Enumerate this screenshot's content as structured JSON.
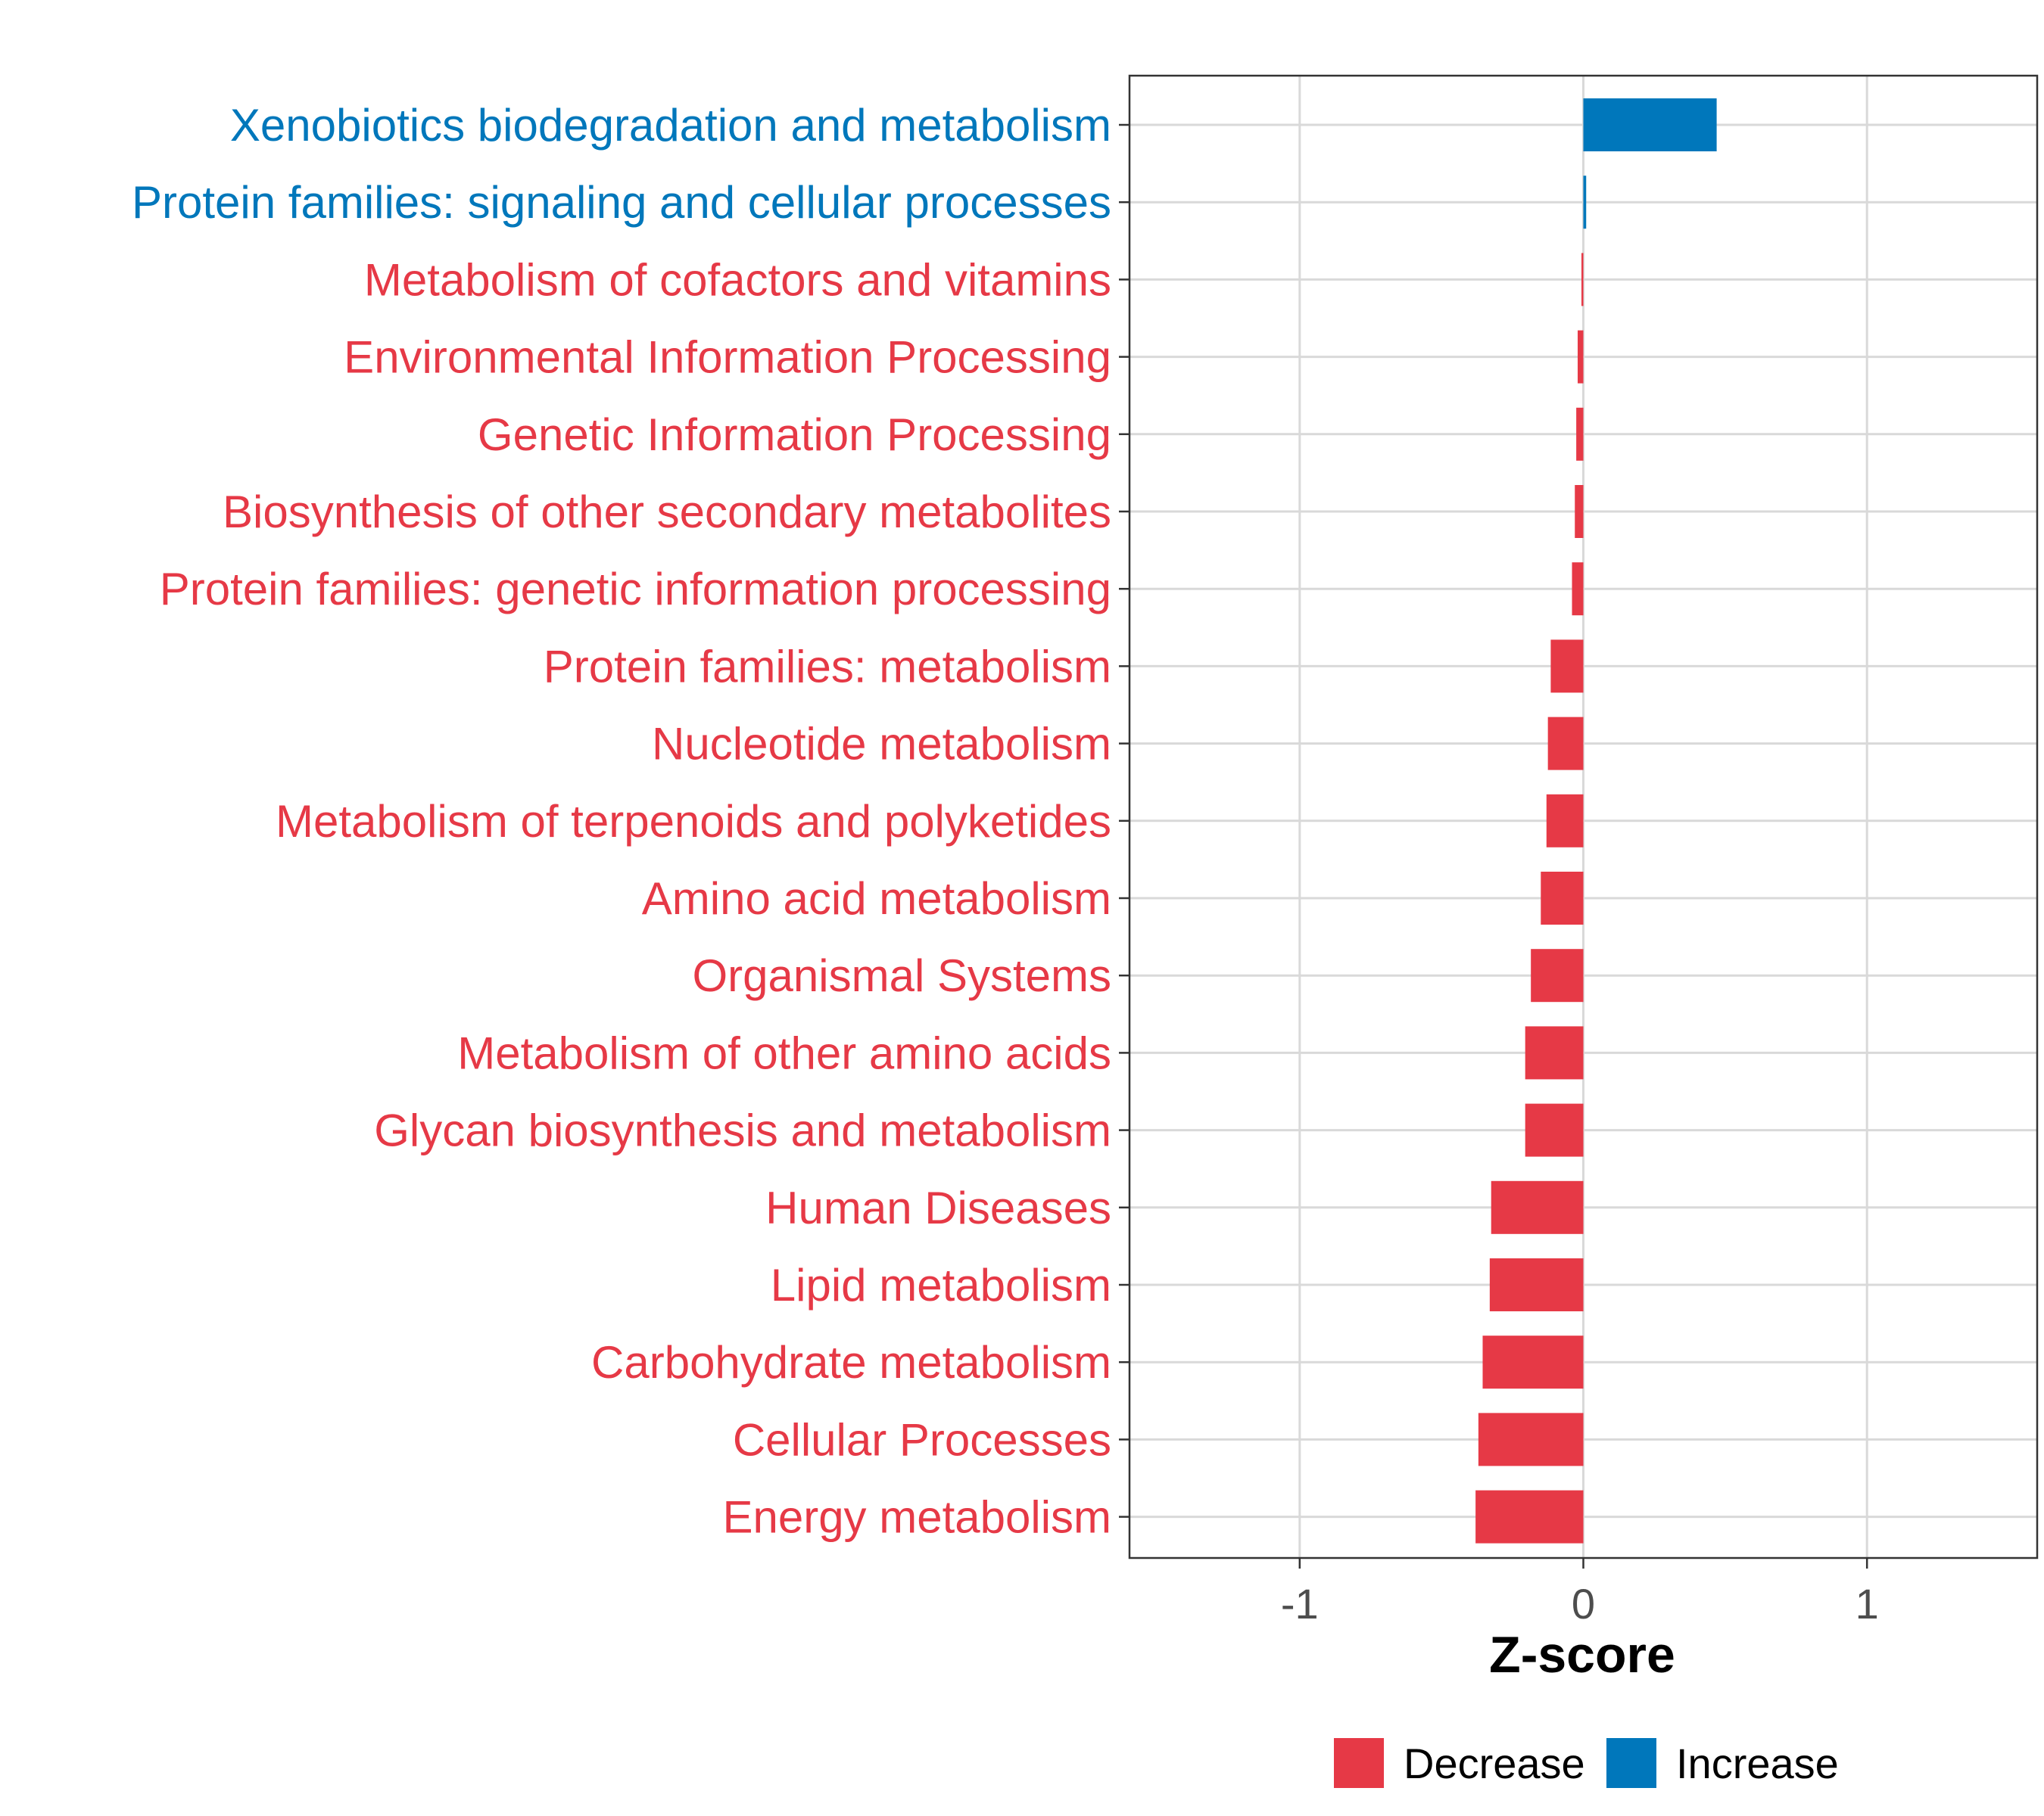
{
  "chart_data": {
    "type": "bar",
    "orientation": "horizontal",
    "title": "",
    "xlabel": "Z-score",
    "ylabel": "",
    "xlim": [
      -1.6,
      1.6
    ],
    "xticks": [
      -1,
      0,
      1
    ],
    "xtick_labels": [
      "-1",
      "0",
      "1"
    ],
    "grid": true,
    "legend_position": "bottom",
    "categories": [
      "Xenobiotics biodegradation and metabolism",
      "Protein families: signaling and cellular processes",
      "Metabolism of cofactors and vitamins",
      "Environmental Information Processing",
      "Genetic Information Processing",
      "Biosynthesis of other secondary metabolites",
      "Protein families: genetic information processing",
      "Protein families: metabolism",
      "Nucleotide metabolism",
      "Metabolism of terpenoids and polyketides",
      "Amino acid metabolism",
      "Organismal Systems",
      "Metabolism of other amino acids",
      "Glycan biosynthesis and metabolism",
      "Human Diseases",
      "Lipid metabolism",
      "Carbohydrate metabolism",
      "Cellular Processes",
      "Energy metabolism"
    ],
    "values": [
      0.47,
      0.01,
      -0.005,
      -0.02,
      -0.025,
      -0.03,
      -0.04,
      -0.115,
      -0.125,
      -0.13,
      -0.15,
      -0.185,
      -0.205,
      -0.205,
      -0.325,
      -0.33,
      -0.355,
      -0.37,
      -0.38
    ],
    "groups": [
      "Increase",
      "Increase",
      "Decrease",
      "Decrease",
      "Decrease",
      "Decrease",
      "Decrease",
      "Decrease",
      "Decrease",
      "Decrease",
      "Decrease",
      "Decrease",
      "Decrease",
      "Decrease",
      "Decrease",
      "Decrease",
      "Decrease",
      "Decrease",
      "Decrease"
    ],
    "legend": [
      {
        "name": "Decrease",
        "color": "#e63946"
      },
      {
        "name": "Increase",
        "color": "#0077bb"
      }
    ]
  }
}
